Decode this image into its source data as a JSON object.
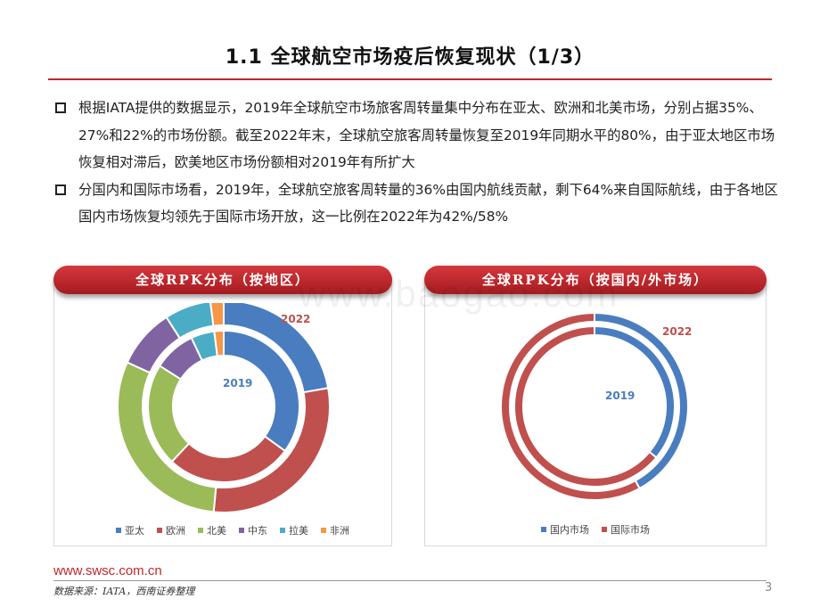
{
  "title": "1.1 全球航空市场疫后恢复现状（1/3）",
  "bullets": [
    "根据IATA提供的数据显示，2019年全球航空市场旅客周转量集中分布在亚太、欧洲和北美市场，分别占据35%、27%和22%的市场份额。截至2022年末，全球航空旅客周转量恢复至2019年同期水平的80%，由于亚太地区市场恢复相对滞后，欧美地区市场份额相对2019年有所扩大",
    "分国内和国际市场看，2019年，全球航空旅客周转量的36%由国内航线贡献，剩下64%来自国际航线，由于各地区国内市场恢复均领先于国际市场开放，这一比例在2022年为42%/58%"
  ],
  "watermark": "www.baogao.com",
  "chart_data": [
    {
      "type": "donut",
      "title": "全球RPK分布（按地区）",
      "inner_label": "2019",
      "outer_label": "2022",
      "categories": [
        "亚太",
        "欧洲",
        "北美",
        "中东",
        "拉美",
        "非洲"
      ],
      "colors": [
        "#4a7dbf",
        "#c0504d",
        "#9bbb59",
        "#8064a2",
        "#4bacc6",
        "#f79646"
      ],
      "series": [
        {
          "name": "2019",
          "values": [
            35,
            27,
            22,
            9,
            5,
            2
          ]
        },
        {
          "name": "2022",
          "values": [
            22,
            29,
            30,
            9,
            7,
            2
          ]
        }
      ]
    },
    {
      "type": "donut",
      "title": "全球RPK分布（按国内/外市场）",
      "inner_label": "2019",
      "outer_label": "2022",
      "categories": [
        "国内市场",
        "国际市场"
      ],
      "colors": [
        "#4a7dbf",
        "#c0504d"
      ],
      "series": [
        {
          "name": "2019",
          "values": [
            36,
            64
          ]
        },
        {
          "name": "2022",
          "values": [
            42,
            58
          ]
        }
      ]
    }
  ],
  "footer": {
    "url": "www.swsc.com.cn",
    "source": "数据来源：IATA，西南证券整理",
    "page_number": "3"
  }
}
